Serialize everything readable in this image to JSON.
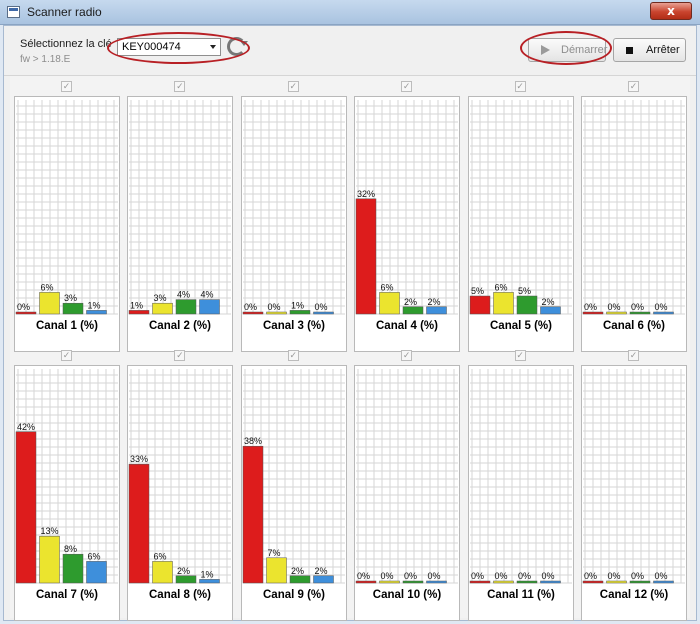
{
  "window": {
    "title": "Scanner radio",
    "close_label": "x"
  },
  "toolbar": {
    "key_label": "Sélectionnez la clé",
    "firmware": "fw > 1.18.E",
    "selected_key": "KEY000474",
    "start_label": "Démarrer",
    "stop_label": "Arrêter",
    "check_mark": "✓"
  },
  "colors": {
    "bars": [
      "#dd1c1c",
      "#ebe42e",
      "#2e9b2e",
      "#3e8fdb"
    ],
    "grid": "#d6d6d6",
    "annotation": "#b82025"
  },
  "chart_data": [
    {
      "type": "bar",
      "title": "Canal 1 (%)",
      "values": [
        0,
        6,
        3,
        1
      ],
      "ylim": [
        0,
        100
      ]
    },
    {
      "type": "bar",
      "title": "Canal 2 (%)",
      "values": [
        1,
        3,
        4,
        4
      ],
      "ylim": [
        0,
        100
      ]
    },
    {
      "type": "bar",
      "title": "Canal 3 (%)",
      "values": [
        0,
        0,
        1,
        0
      ],
      "ylim": [
        0,
        100
      ]
    },
    {
      "type": "bar",
      "title": "Canal 4 (%)",
      "values": [
        32,
        6,
        2,
        2
      ],
      "ylim": [
        0,
        100
      ]
    },
    {
      "type": "bar",
      "title": "Canal 5 (%)",
      "values": [
        5,
        6,
        5,
        2
      ],
      "ylim": [
        0,
        100
      ]
    },
    {
      "type": "bar",
      "title": "Canal 6 (%)",
      "values": [
        0,
        0,
        0,
        0
      ],
      "ylim": [
        0,
        100
      ]
    },
    {
      "type": "bar",
      "title": "Canal 7 (%)",
      "values": [
        42,
        13,
        8,
        6
      ],
      "ylim": [
        0,
        100
      ]
    },
    {
      "type": "bar",
      "title": "Canal 8 (%)",
      "values": [
        33,
        6,
        2,
        1
      ],
      "ylim": [
        0,
        100
      ]
    },
    {
      "type": "bar",
      "title": "Canal 9 (%)",
      "values": [
        38,
        7,
        2,
        2
      ],
      "ylim": [
        0,
        100
      ]
    },
    {
      "type": "bar",
      "title": "Canal 10 (%)",
      "values": [
        0,
        0,
        0,
        0
      ],
      "ylim": [
        0,
        100
      ]
    },
    {
      "type": "bar",
      "title": "Canal 11 (%)",
      "values": [
        0,
        0,
        0,
        0
      ],
      "ylim": [
        0,
        100
      ]
    },
    {
      "type": "bar",
      "title": "Canal 12 (%)",
      "values": [
        0,
        0,
        0,
        0
      ],
      "ylim": [
        0,
        100
      ]
    }
  ]
}
